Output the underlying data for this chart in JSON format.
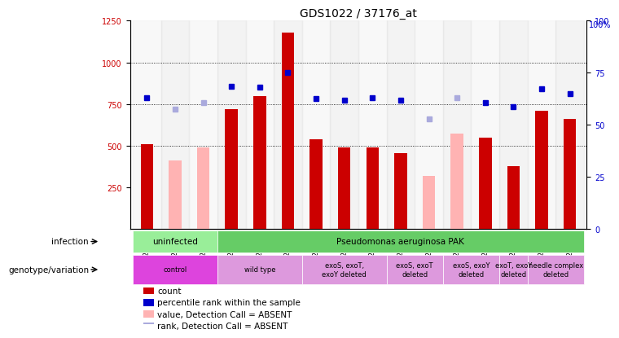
{
  "title": "GDS1022 / 37176_at",
  "samples": [
    "GSM24740",
    "GSM24741",
    "GSM24742",
    "GSM24743",
    "GSM24744",
    "GSM24745",
    "GSM24784",
    "GSM24785",
    "GSM24786",
    "GSM24787",
    "GSM24788",
    "GSM24789",
    "GSM24790",
    "GSM24791",
    "GSM24792",
    "GSM24793"
  ],
  "count_values": [
    510,
    null,
    null,
    720,
    800,
    1180,
    540,
    490,
    490,
    455,
    null,
    null,
    550,
    380,
    710,
    660
  ],
  "count_absent": [
    null,
    410,
    490,
    null,
    null,
    null,
    null,
    null,
    null,
    null,
    320,
    575,
    null,
    null,
    null,
    null
  ],
  "rank_values": [
    790,
    null,
    null,
    855,
    850,
    940,
    785,
    775,
    790,
    775,
    null,
    null,
    760,
    735,
    840,
    815
  ],
  "rank_absent": [
    null,
    720,
    760,
    null,
    null,
    null,
    null,
    null,
    null,
    null,
    660,
    790,
    null,
    null,
    null,
    null
  ],
  "bar_color": "#cc0000",
  "bar_absent_color": "#ffb3b3",
  "dot_color": "#0000cc",
  "dot_absent_color": "#aaaadd",
  "ylim_left": [
    0,
    1250
  ],
  "ylim_right": [
    0,
    100
  ],
  "yticks_left": [
    250,
    500,
    750,
    1000,
    1250
  ],
  "yticks_right": [
    0,
    25,
    50,
    75,
    100
  ],
  "infection_groups": [
    {
      "label": "uninfected",
      "start": 0,
      "end": 3,
      "color": "#99ee99"
    },
    {
      "label": "Pseudomonas aeruginosa PAK",
      "start": 3,
      "end": 16,
      "color": "#66cc66"
    }
  ],
  "genotype_groups": [
    {
      "label": "control",
      "start": 0,
      "end": 3,
      "color": "#dd44dd"
    },
    {
      "label": "wild type",
      "start": 3,
      "end": 6,
      "color": "#dd99dd"
    },
    {
      "label": "exoS, exoT,\nexoY deleted",
      "start": 6,
      "end": 9,
      "color": "#dd99dd"
    },
    {
      "label": "exoS, exoT\ndeleted",
      "start": 9,
      "end": 11,
      "color": "#dd99dd"
    },
    {
      "label": "exoS, exoY\ndeleted",
      "start": 11,
      "end": 13,
      "color": "#dd99dd"
    },
    {
      "label": "exoT, exoY\ndeleted",
      "start": 13,
      "end": 14,
      "color": "#dd99dd"
    },
    {
      "label": "needle complex\ndeleted",
      "start": 14,
      "end": 16,
      "color": "#dd99dd"
    }
  ],
  "legend_items": [
    {
      "label": "count",
      "color": "#cc0000",
      "marker": "s"
    },
    {
      "label": "percentile rank within the sample",
      "color": "#0000cc",
      "marker": "s"
    },
    {
      "label": "value, Detection Call = ABSENT",
      "color": "#ffb3b3",
      "marker": "s"
    },
    {
      "label": "rank, Detection Call = ABSENT",
      "color": "#aaaadd",
      "marker": "s"
    }
  ]
}
